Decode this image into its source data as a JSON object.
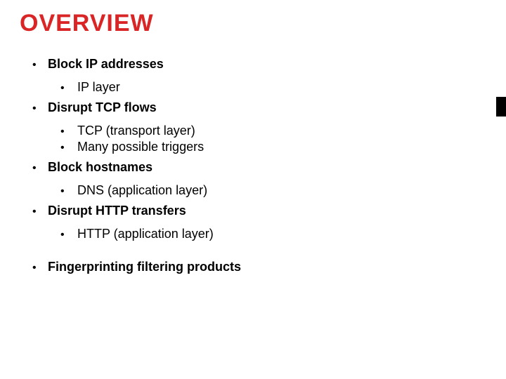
{
  "title": {
    "text": "OVERVIEW",
    "color": "#d92525",
    "font_size_pt": 34,
    "font_weight": 900
  },
  "colors": {
    "background": "#ffffff",
    "text": "#000000",
    "accent_bar": "#000000"
  },
  "typography": {
    "lvl1_font_size_pt": 18,
    "lvl1_font_weight": 700,
    "lvl2_font_size_pt": 18,
    "lvl2_font_weight": 400,
    "bullet_glyph": "•"
  },
  "bullets": [
    {
      "text": "Block IP addresses",
      "children": [
        {
          "text": "IP layer"
        }
      ]
    },
    {
      "text": "Disrupt TCP flows",
      "children": [
        {
          "text": "TCP (transport layer)"
        },
        {
          "text": "Many possible triggers"
        }
      ]
    },
    {
      "text": "Block hostnames",
      "children": [
        {
          "text": "DNS (application layer)"
        }
      ]
    },
    {
      "text": "Disrupt HTTP transfers",
      "children": [
        {
          "text": "HTTP (application layer)"
        }
      ]
    },
    {
      "text": "Fingerprinting filtering products",
      "spaced_above": true,
      "children": []
    }
  ]
}
